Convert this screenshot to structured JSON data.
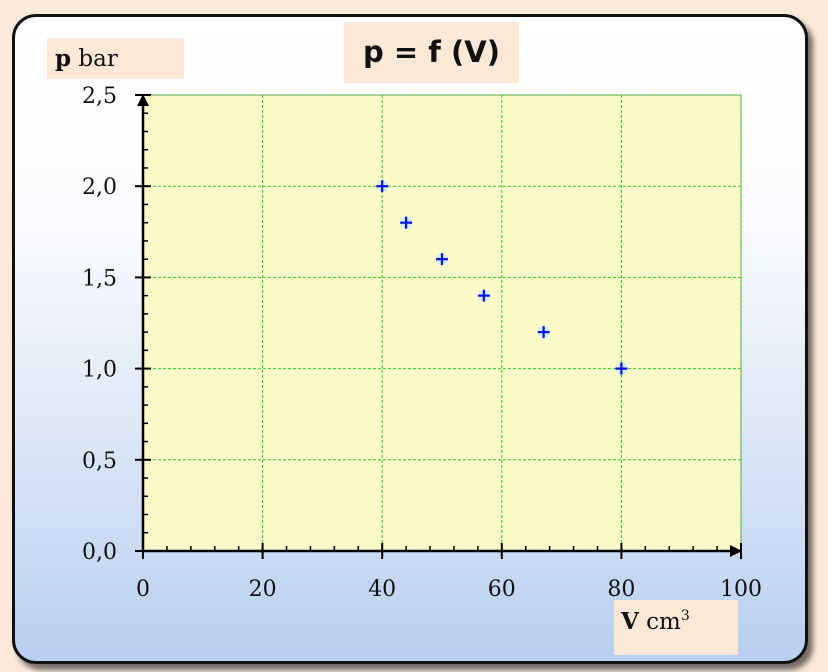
{
  "chart_data": {
    "type": "scatter",
    "title": "p = f (V)",
    "ylabel": {
      "symbol": "p",
      "unit": "bar"
    },
    "xlabel": {
      "symbol": "V",
      "unit": "cm",
      "unit_exponent": "3"
    },
    "xlim": [
      0,
      100
    ],
    "ylim": [
      0,
      2.5
    ],
    "x_ticks": [
      0,
      20,
      40,
      60,
      80,
      100
    ],
    "x_tick_labels": [
      "0",
      "20",
      "40",
      "60",
      "80",
      "100"
    ],
    "y_ticks": [
      0,
      0.5,
      1.0,
      1.5,
      2.0,
      2.5
    ],
    "y_tick_labels": [
      "0,0",
      "0,5",
      "1,0",
      "1,5",
      "2,0",
      "2,5"
    ],
    "grid": true,
    "marker": "plus",
    "points": [
      {
        "x": 40,
        "y": 2.0
      },
      {
        "x": 44,
        "y": 1.8
      },
      {
        "x": 50,
        "y": 1.6
      },
      {
        "x": 57,
        "y": 1.4
      },
      {
        "x": 67,
        "y": 1.2
      },
      {
        "x": 80,
        "y": 1.0
      }
    ],
    "colors": {
      "plot_background": "#fcfac8",
      "grid": "#22cc22",
      "marker": "#1010e0",
      "axis": "#000000"
    }
  }
}
